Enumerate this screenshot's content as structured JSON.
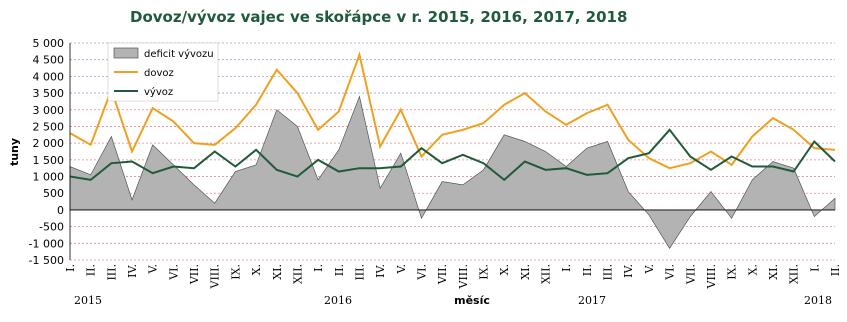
{
  "chart_data": {
    "type": "line",
    "title": "Dovoz/vývoz vajec ve skořápce v r. 2015, 2016, 2017, 2018",
    "x_label": "měsíc",
    "y_label": "tuny",
    "categories": [
      "I.",
      "II.",
      "III.",
      "IV.",
      "V.",
      "VI.",
      "VII.",
      "VIII.",
      "IX.",
      "X.",
      "XI.",
      "XII.",
      "I.",
      "II.",
      "III.",
      "IV.",
      "V.",
      "VI.",
      "VII.",
      "VIII.",
      "IX.",
      "X.",
      "XI.",
      "XII.",
      "I.",
      "II.",
      "III.",
      "IV.",
      "V.",
      "VI.",
      "VII.",
      "VIII.",
      "IX.",
      "X.",
      "XI.",
      "XII.",
      "I.",
      "II."
    ],
    "year_labels": [
      "2015",
      "2016",
      "2017",
      "2018"
    ],
    "series": [
      {
        "name": "deficit vývozu",
        "type": "area",
        "color": "#b3b3b3",
        "values": [
          1300,
          1050,
          2200,
          300,
          1950,
          1350,
          750,
          200,
          1150,
          1350,
          3000,
          2500,
          900,
          1800,
          3400,
          650,
          1700,
          -250,
          850,
          750,
          1200,
          2250,
          2050,
          1750,
          1300,
          1850,
          2050,
          550,
          -150,
          -1150,
          -200,
          550,
          -250,
          900,
          1450,
          1250,
          -200,
          350
        ]
      },
      {
        "name": "dovoz",
        "type": "line",
        "color": "#f0a020",
        "values": [
          2300,
          1950,
          3600,
          1750,
          3050,
          2650,
          2000,
          1950,
          2450,
          3150,
          4200,
          3500,
          2400,
          2950,
          4650,
          1900,
          3000,
          1600,
          2250,
          2400,
          2600,
          3150,
          3500,
          2950,
          2550,
          2900,
          3150,
          2100,
          1550,
          1250,
          1400,
          1750,
          1350,
          2200,
          2750,
          2400,
          1850,
          1800
        ]
      },
      {
        "name": "vývoz",
        "type": "line",
        "color": "#1f5a3a",
        "values": [
          1000,
          900,
          1400,
          1450,
          1100,
          1300,
          1250,
          1750,
          1300,
          1800,
          1200,
          1000,
          1500,
          1150,
          1250,
          1250,
          1300,
          1850,
          1400,
          1650,
          1400,
          900,
          1450,
          1200,
          1250,
          1050,
          1100,
          1550,
          1700,
          2400,
          1600,
          1200,
          1600,
          1300,
          1300,
          1150,
          2050,
          1450
        ]
      }
    ],
    "ylim": [
      -1500,
      5000
    ],
    "yticks": [
      {
        "value": 5000,
        "label": "5 000"
      },
      {
        "value": 4500,
        "label": "4 500"
      },
      {
        "value": 4000,
        "label": "4 000"
      },
      {
        "value": 3500,
        "label": "3 500"
      },
      {
        "value": 3000,
        "label": "3 000"
      },
      {
        "value": 2500,
        "label": "2 500"
      },
      {
        "value": 2000,
        "label": "2 000"
      },
      {
        "value": 1500,
        "label": "1 500"
      },
      {
        "value": 1000,
        "label": "1 000"
      },
      500,
      0,
      -500,
      {
        "value": -1000,
        "label": "-1 000"
      },
      {
        "value": -1500,
        "label": "-1 500"
      }
    ],
    "grid": true
  }
}
